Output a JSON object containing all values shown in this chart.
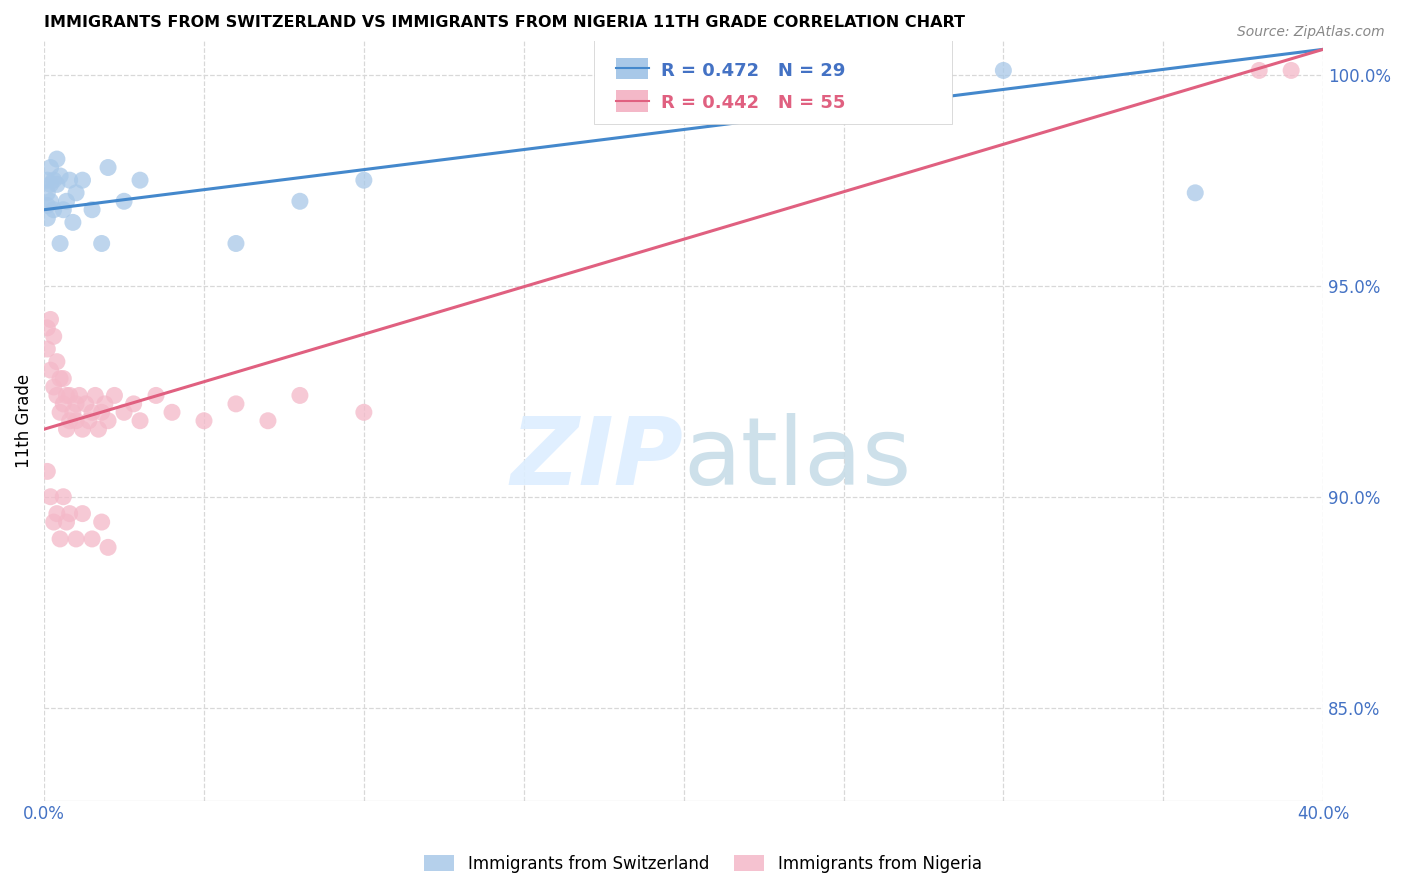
{
  "title": "IMMIGRANTS FROM SWITZERLAND VS IMMIGRANTS FROM NIGERIA 11TH GRADE CORRELATION CHART",
  "source": "Source: ZipAtlas.com",
  "ylabel": "11th Grade",
  "ylabel_right_ticks": [
    "100.0%",
    "95.0%",
    "90.0%",
    "85.0%"
  ],
  "ylabel_right_vals": [
    1.0,
    0.95,
    0.9,
    0.85
  ],
  "legend_blue_r": "R = 0.472",
  "legend_blue_n": "N = 29",
  "legend_pink_r": "R = 0.442",
  "legend_pink_n": "N = 55",
  "blue_color": "#a8c8e8",
  "pink_color": "#f4b8c8",
  "blue_line_color": "#4488cc",
  "pink_line_color": "#e06080",
  "background_color": "#ffffff",
  "grid_color": "#d8d8d8",
  "watermark_color": "#ddeeff",
  "xlim": [
    0.0,
    0.4
  ],
  "ylim": [
    0.828,
    1.008
  ],
  "blue_line_y0": 0.968,
  "blue_line_y1": 1.006,
  "pink_line_y0": 0.916,
  "pink_line_y1": 1.006,
  "swiss_x": [
    0.001,
    0.001,
    0.001,
    0.001,
    0.002,
    0.002,
    0.002,
    0.003,
    0.003,
    0.004,
    0.004,
    0.005,
    0.005,
    0.006,
    0.007,
    0.008,
    0.009,
    0.01,
    0.012,
    0.015,
    0.018,
    0.02,
    0.025,
    0.03,
    0.06,
    0.08,
    0.1,
    0.3,
    0.36
  ],
  "swiss_y": [
    0.975,
    0.972,
    0.969,
    0.966,
    0.978,
    0.974,
    0.97,
    0.975,
    0.968,
    0.98,
    0.974,
    0.976,
    0.96,
    0.968,
    0.97,
    0.975,
    0.965,
    0.972,
    0.975,
    0.968,
    0.96,
    0.978,
    0.97,
    0.975,
    0.96,
    0.97,
    0.975,
    1.001,
    0.972
  ],
  "nigeria_x": [
    0.001,
    0.001,
    0.002,
    0.002,
    0.003,
    0.003,
    0.004,
    0.004,
    0.005,
    0.005,
    0.006,
    0.006,
    0.007,
    0.007,
    0.008,
    0.008,
    0.009,
    0.01,
    0.01,
    0.011,
    0.012,
    0.013,
    0.014,
    0.015,
    0.016,
    0.017,
    0.018,
    0.019,
    0.02,
    0.022,
    0.025,
    0.028,
    0.03,
    0.035,
    0.04,
    0.05,
    0.06,
    0.07,
    0.08,
    0.1,
    0.001,
    0.002,
    0.003,
    0.004,
    0.005,
    0.006,
    0.007,
    0.008,
    0.01,
    0.012,
    0.015,
    0.018,
    0.02,
    0.38,
    0.39
  ],
  "nigeria_y": [
    0.94,
    0.935,
    0.942,
    0.93,
    0.938,
    0.926,
    0.932,
    0.924,
    0.928,
    0.92,
    0.928,
    0.922,
    0.924,
    0.916,
    0.918,
    0.924,
    0.92,
    0.922,
    0.918,
    0.924,
    0.916,
    0.922,
    0.918,
    0.92,
    0.924,
    0.916,
    0.92,
    0.922,
    0.918,
    0.924,
    0.92,
    0.922,
    0.918,
    0.924,
    0.92,
    0.918,
    0.922,
    0.918,
    0.924,
    0.92,
    0.906,
    0.9,
    0.894,
    0.896,
    0.89,
    0.9,
    0.894,
    0.896,
    0.89,
    0.896,
    0.89,
    0.894,
    0.888,
    1.001,
    1.001
  ]
}
